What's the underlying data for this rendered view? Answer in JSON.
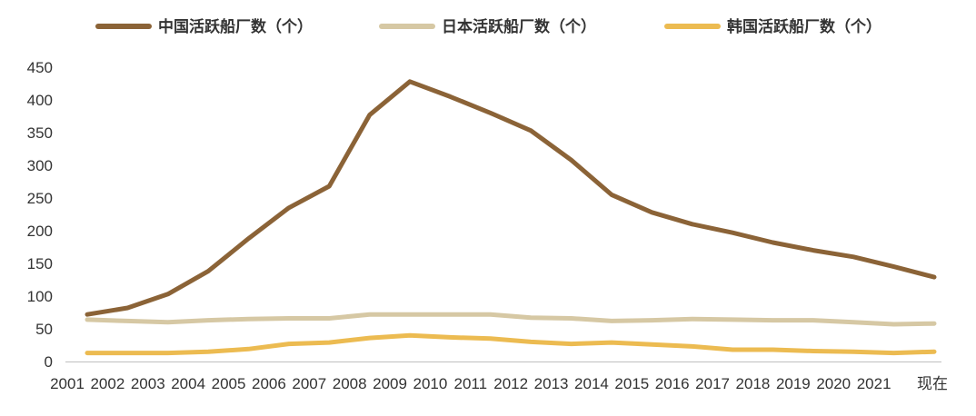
{
  "chart_data": {
    "type": "line",
    "x": [
      "2001",
      "2002",
      "2003",
      "2004",
      "2005",
      "2006",
      "2007",
      "2008",
      "2009",
      "2010",
      "2011",
      "2012",
      "2013",
      "2014",
      "2015",
      "2016",
      "2017",
      "2018",
      "2019",
      "2020",
      "2021",
      "现在"
    ],
    "series": [
      {
        "name": "中国活跃船厂数（个）",
        "color": "#8b6337",
        "values": [
          72,
          82,
          103,
          138,
          188,
          235,
          268,
          377,
          428,
          405,
          380,
          353,
          308,
          255,
          228,
          210,
          197,
          182,
          170,
          160,
          145,
          129
        ]
      },
      {
        "name": "日本活跃船厂数（个）",
        "color": "#d6c8a4",
        "values": [
          64,
          62,
          60,
          63,
          65,
          66,
          66,
          72,
          72,
          72,
          72,
          67,
          66,
          62,
          63,
          65,
          64,
          63,
          63,
          60,
          57,
          58
        ]
      },
      {
        "name": "韩国活跃船厂数（个）",
        "color": "#ecbb51",
        "values": [
          13,
          13,
          13,
          15,
          19,
          27,
          29,
          36,
          40,
          37,
          35,
          30,
          27,
          29,
          26,
          23,
          18,
          18,
          16,
          15,
          13,
          15
        ]
      }
    ],
    "ylim": [
      0,
      450
    ],
    "yticks": [
      0,
      50,
      100,
      150,
      200,
      250,
      300,
      350,
      400,
      450
    ],
    "legend_position": "top",
    "grid": false
  }
}
